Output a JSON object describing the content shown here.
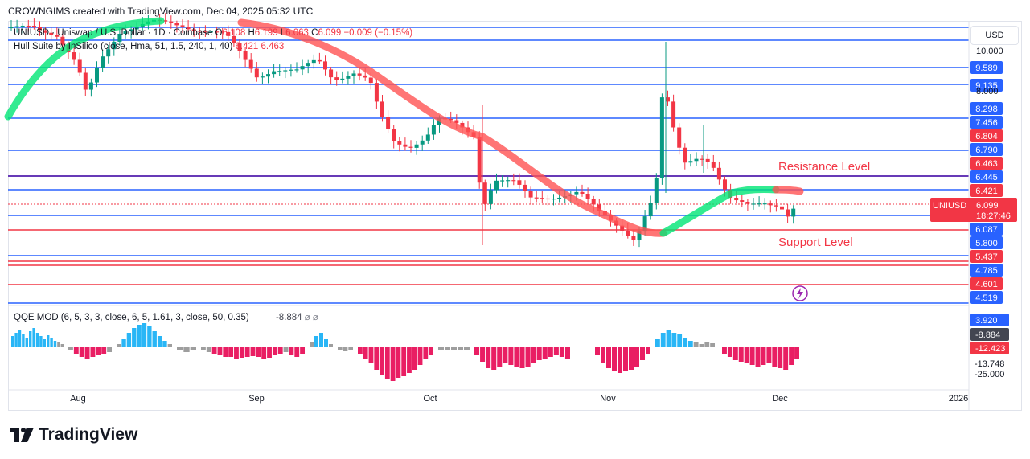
{
  "header": {
    "text": "CROWNGIMS created with TradingView.com, Dec 04, 2025 05:32 UTC"
  },
  "legend": {
    "symbol": "UNIUSD · Uniswap / U.S. Dollar · 1D · Coinbase",
    "o_label": "O",
    "o_value": "6.108",
    "h_label": "H",
    "h_value": "6.199",
    "l_label": "L",
    "l_value": "6.063",
    "c_label": "C",
    "c_value": "6.099",
    "change": "−0.009 (−0.15%)",
    "hull_name": "Hull Suite by InSilico (close, Hma, 51, 1.5, 240, 1, 40)",
    "hull_v1": "6.421",
    "hull_v2": "6.463",
    "qqe_name": "QQE MOD (6, 5, 3, 3, close, 6, 5, 1.61, 3, close, 50, 0.35)",
    "qqe_value": "-8.884"
  },
  "currency": "USD",
  "annotations": {
    "resistance": "Resistance Level",
    "support": "Support Level"
  },
  "price_scale": {
    "ticks": [
      "10.000",
      "8.000"
    ],
    "badges": [
      {
        "text": "9.589",
        "bg": "#2962ff"
      },
      {
        "text": "9.135",
        "bg": "#2962ff"
      },
      {
        "text": "8.298",
        "bg": "#2962ff"
      },
      {
        "text": "7.456",
        "bg": "#2962ff"
      },
      {
        "text": "6.804",
        "bg": "#f23645"
      },
      {
        "text": "6.790",
        "bg": "#2962ff"
      },
      {
        "text": "6.463",
        "bg": "#f23645"
      },
      {
        "text": "6.445",
        "bg": "#2962ff"
      },
      {
        "text": "6.421",
        "bg": "#f23645"
      },
      {
        "text": "6.087",
        "bg": "#2962ff"
      },
      {
        "text": "5.800",
        "bg": "#2962ff"
      },
      {
        "text": "5.437",
        "bg": "#f23645"
      },
      {
        "text": "4.785",
        "bg": "#2962ff"
      },
      {
        "text": "4.601",
        "bg": "#f23645"
      },
      {
        "text": "4.519",
        "bg": "#2962ff"
      }
    ],
    "current": {
      "symbol": "UNIUSD",
      "price": "6.099",
      "countdown": "18:27:46"
    }
  },
  "qqe_scale": {
    "badges": [
      {
        "text": "3.920",
        "bg": "#2962ff"
      },
      {
        "text": "-8.884",
        "bg": "#434651"
      },
      {
        "text": "-12.423",
        "bg": "#f23645"
      }
    ],
    "ticks": [
      "-13.748",
      "-25.000"
    ]
  },
  "time_axis": [
    "Aug",
    "Sep",
    "Oct",
    "Nov",
    "Dec",
    "2026"
  ],
  "brand": "TradingView",
  "colors": {
    "up": "#089981",
    "down": "#f23645",
    "hline_blue": "#2962ff",
    "hline_red": "#f23645",
    "hull_up": "#00e676",
    "hull_down": "#ff5252"
  }
}
